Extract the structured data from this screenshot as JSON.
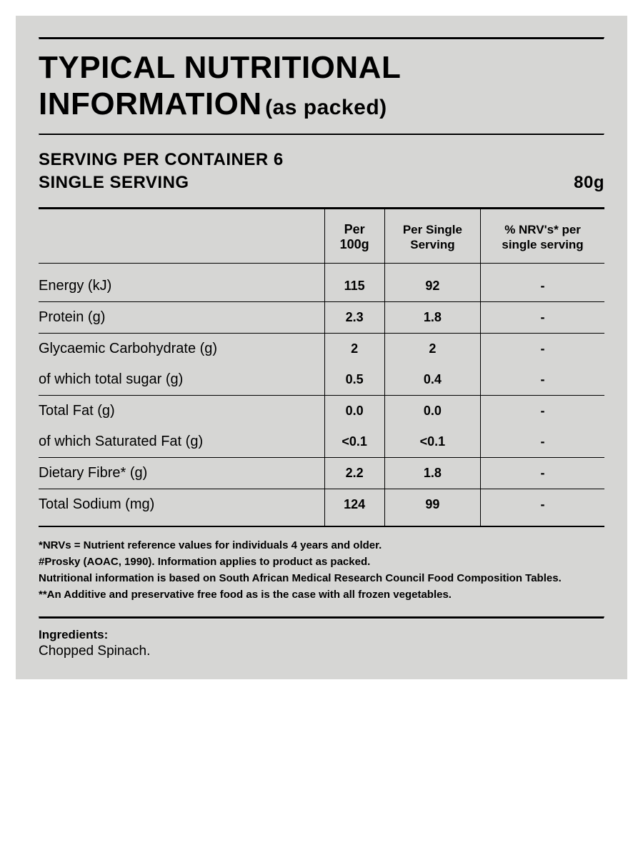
{
  "title_main": "TYPICAL NUTRITIONAL INFORMATION",
  "title_sub": "(as packed)",
  "servings_per_container_label": "SERVING PER CONTAINER 6",
  "single_serving_label": "SINGLE SERVING",
  "single_serving_amount": "80g",
  "columns": {
    "c1": "",
    "c2": "Per 100g",
    "c3": "Per Single Serving",
    "c4": "% NRV's* per single serving"
  },
  "rows": [
    {
      "label": "Energy (kJ)",
      "per100": "115",
      "perServing": "92",
      "nrv": "-",
      "sep": true,
      "extraTop": true
    },
    {
      "label": "Protein (g)",
      "per100": "2.3",
      "perServing": "1.8",
      "nrv": "-",
      "sep": true
    },
    {
      "label": "Glycaemic Carbohydrate (g)",
      "per100": "2",
      "perServing": "2",
      "nrv": "-",
      "groupTop": true
    },
    {
      "label": "of which total sugar (g)",
      "per100": "0.5",
      "perServing": "0.4",
      "nrv": "-",
      "sep": true,
      "groupBot": true
    },
    {
      "label": "Total Fat (g)",
      "per100": "0.0",
      "perServing": "0.0",
      "nrv": "-",
      "groupTop": true
    },
    {
      "label": "of which Saturated Fat (g)",
      "per100": "<0.1",
      "perServing": "<0.1",
      "nrv": "-",
      "sep": true,
      "groupBot": true
    },
    {
      "label": "Dietary Fibre* (g)",
      "per100": "2.2",
      "perServing": "1.8",
      "nrv": "-",
      "sep": true
    },
    {
      "label": "Total Sodium (mg)",
      "per100": "124",
      "perServing": "99",
      "nrv": "-",
      "sep": false,
      "extraBot": true
    }
  ],
  "footnotes": [
    "*NRVs = Nutrient reference values for individuals 4 years and older.",
    "#Prosky (AOAC, 1990). Information applies to product as packed.",
    "Nutritional information is based on South African Medical Research Council Food Composition Tables.",
    "**An Additive and preservative free food as is the case with all frozen vegetables."
  ],
  "ingredients_label": "Ingredients:",
  "ingredients_body": "Chopped Spinach."
}
